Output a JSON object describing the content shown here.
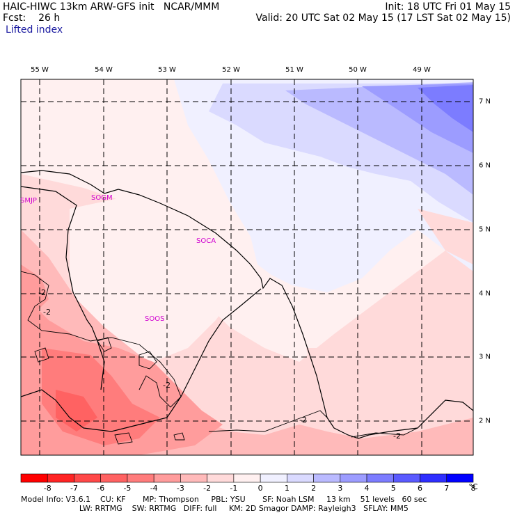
{
  "header": {
    "model_line": "HAIC-HIWC 13km ARW-GFS init   NCAR/MMM",
    "init_line": "Init: 18 UTC Fri 01 May 15",
    "fcst_label": "Fcst:",
    "fcst_value": "26 h",
    "valid_line": "Valid: 20 UTC Sat 02 May 15 (17 LST Sat 02 May 15)",
    "field_name": "Lifted index"
  },
  "map": {
    "lon_labels": [
      "55 W",
      "54 W",
      "53 W",
      "52 W",
      "51 W",
      "50 W",
      "49 W"
    ],
    "lat_labels": [
      "7 N",
      "6 N",
      "5 N",
      "4 N",
      "3 N",
      "2 N"
    ],
    "stations": [
      "SMJP",
      "SOGM",
      "SOCA",
      "SOOS"
    ],
    "contour_labels": [
      "-2",
      "-2",
      "-2",
      "-2",
      "-2"
    ]
  },
  "colorbar": {
    "ticks": [
      "-8",
      "-7",
      "-6",
      "-5",
      "-4",
      "-3",
      "-2",
      "-1",
      "0",
      "1",
      "2",
      "3",
      "4",
      "5",
      "6",
      "7",
      "8"
    ],
    "unit": "°C",
    "colors": [
      "#ff0000",
      "#ff2424",
      "#ff4848",
      "#ff6262",
      "#ff7c7c",
      "#ff9c9c",
      "#ffbaba",
      "#ffdada",
      "#fff0f0",
      "#f0f0ff",
      "#dadaff",
      "#babaff",
      "#9c9cff",
      "#7c7cff",
      "#5a5aff",
      "#2e2eff",
      "#0000ff"
    ]
  },
  "footer": {
    "line1": "Model Info: V3.6.1    CU: KF       MP: Thompson     PBL: YSU       SF: Noah LSM     13 km    51 levels   60 sec",
    "line2": "                        LW: RRTMG    SW: RRTMG   DIFF: full     KM: 2D Smagor DAMP: Rayleigh3   SFLAY: MM5"
  }
}
